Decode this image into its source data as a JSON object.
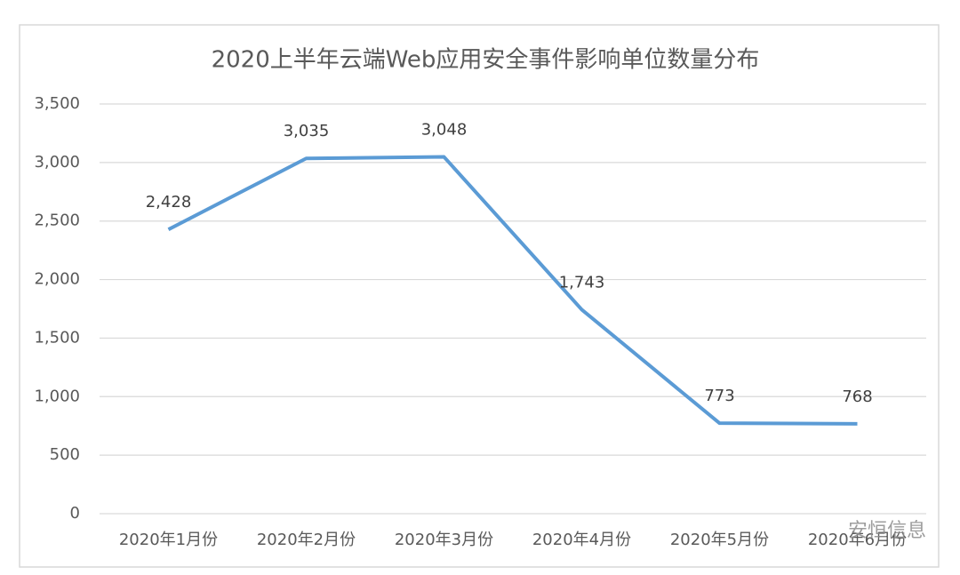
{
  "chart_data": {
    "type": "line",
    "title": "2020上半年云端Web应用安全事件影响单位数量分布",
    "categories": [
      "2020年1月份",
      "2020年2月份",
      "2020年3月份",
      "2020年4月份",
      "2020年5月份",
      "2020年6月份"
    ],
    "series": [
      {
        "name": "影响单位数量",
        "color": "#5b9bd5",
        "values": [
          2428,
          3035,
          3048,
          1743,
          773,
          768
        ],
        "value_labels": [
          "2,428",
          "3,035",
          "3,048",
          "1,743",
          "773",
          "768"
        ]
      }
    ],
    "ylim": [
      0,
      3500
    ],
    "yticks": [
      0,
      500,
      {
        "value": 1000,
        "label": "1,000"
      },
      {
        "value": 1500,
        "label": "1,500"
      },
      {
        "value": 2000,
        "label": "2,000"
      },
      {
        "value": 2500,
        "label": "2,500"
      },
      {
        "value": 3000,
        "label": "3,000"
      },
      {
        "value": 3500,
        "label": "3,500"
      }
    ],
    "grid": true,
    "watermark": "安恒信息"
  }
}
